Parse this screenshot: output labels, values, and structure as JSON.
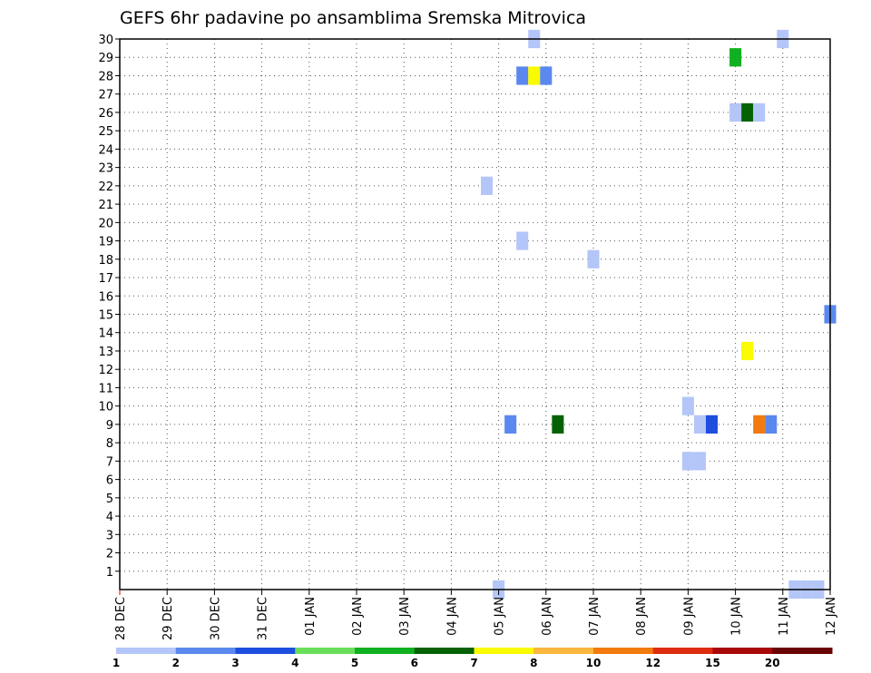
{
  "chart_data": {
    "type": "heatmap",
    "title": "GEFS 6hr padavine po ansamblima Sremska Mitrovica",
    "xlabel": "",
    "ylabel": "",
    "x_tick_labels": [
      "28 DEC",
      "29 DEC",
      "30 DEC",
      "31 DEC",
      "01 JAN",
      "02 JAN",
      "03 JAN",
      "04 JAN",
      "05 JAN",
      "06 JAN",
      "07 JAN",
      "08 JAN",
      "09 JAN",
      "10 JAN",
      "11 JAN",
      "12 JAN"
    ],
    "y_tick_labels": [
      "1",
      "2",
      "3",
      "4",
      "5",
      "6",
      "7",
      "8",
      "9",
      "10",
      "11",
      "12",
      "13",
      "14",
      "15",
      "16",
      "17",
      "18",
      "19",
      "20",
      "21",
      "22",
      "23",
      "24",
      "25",
      "26",
      "27",
      "28",
      "29",
      "30"
    ],
    "xlim_days": [
      0,
      15
    ],
    "ylim_members": [
      0,
      30
    ],
    "grid": true,
    "legend": {
      "placement": "bottom",
      "labels": [
        "1",
        "2",
        "3",
        "4",
        "5",
        "6",
        "7",
        "8",
        "10",
        "12",
        "15",
        "20"
      ],
      "colors": [
        "#b4c6f8",
        "#5a88ee",
        "#1e4ede",
        "#6ade5a",
        "#10b020",
        "#046204",
        "#fafa00",
        "#fab63e",
        "#f27a0e",
        "#de2c0e",
        "#a80808",
        "#6a0404"
      ]
    },
    "cells": [
      {
        "day": 8.0,
        "member": 0,
        "cls": 0
      },
      {
        "day": 14.25,
        "member": 0,
        "cls": 0
      },
      {
        "day": 14.5,
        "member": 0,
        "cls": 0
      },
      {
        "day": 14.75,
        "member": 0,
        "cls": 0
      },
      {
        "day": 8.75,
        "member": 30,
        "cls": 0
      },
      {
        "day": 14.0,
        "member": 30,
        "cls": 0
      },
      {
        "day": 13.0,
        "member": 29,
        "cls": 4
      },
      {
        "day": 8.5,
        "member": 28,
        "cls": 1
      },
      {
        "day": 8.75,
        "member": 28,
        "cls": 6
      },
      {
        "day": 9.0,
        "member": 28,
        "cls": 1
      },
      {
        "day": 13.0,
        "member": 26,
        "cls": 0
      },
      {
        "day": 13.25,
        "member": 26,
        "cls": 5
      },
      {
        "day": 13.5,
        "member": 26,
        "cls": 0
      },
      {
        "day": 7.75,
        "member": 22,
        "cls": 0
      },
      {
        "day": 8.5,
        "member": 19,
        "cls": 0
      },
      {
        "day": 10.0,
        "member": 18,
        "cls": 0
      },
      {
        "day": 15.0,
        "member": 15,
        "cls": 1
      },
      {
        "day": 13.25,
        "member": 13,
        "cls": 6
      },
      {
        "day": 12.0,
        "member": 10,
        "cls": 0
      },
      {
        "day": 8.25,
        "member": 9,
        "cls": 1
      },
      {
        "day": 9.25,
        "member": 9,
        "cls": 5
      },
      {
        "day": 12.25,
        "member": 9,
        "cls": 0
      },
      {
        "day": 12.5,
        "member": 9,
        "cls": 2
      },
      {
        "day": 13.5,
        "member": 9,
        "cls": 8
      },
      {
        "day": 13.75,
        "member": 9,
        "cls": 1
      },
      {
        "day": 12.0,
        "member": 7,
        "cls": 0
      },
      {
        "day": 12.25,
        "member": 7,
        "cls": 0
      }
    ]
  }
}
